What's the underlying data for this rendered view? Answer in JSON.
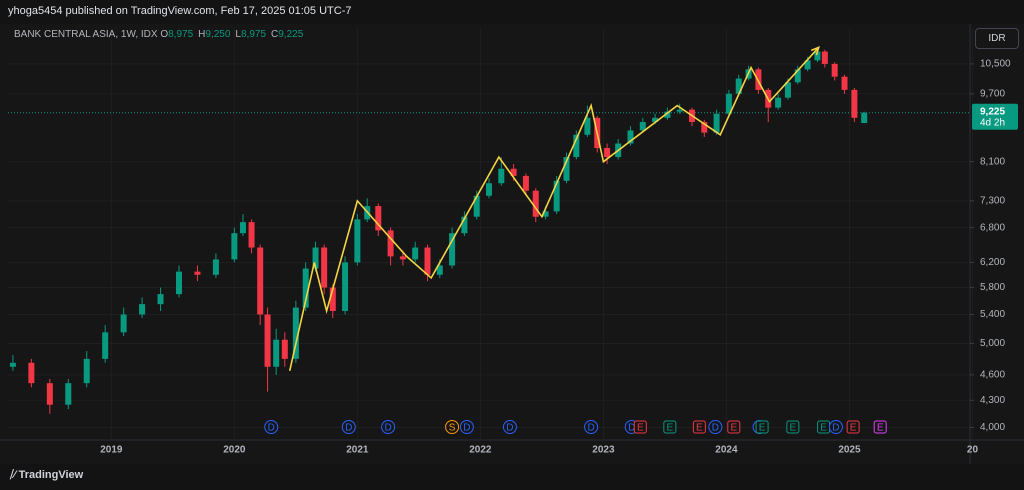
{
  "header": {
    "publisher": "yhoga5454 published on TradingView.com, Feb 17, 2025 01:05 UTC-7",
    "brand": "TradingView"
  },
  "chart_data": {
    "type": "candlestick",
    "title": "BANK CENTRAL ASIA, 1W, IDX",
    "currency": "IDR",
    "legend": [
      {
        "key": "O",
        "value": 8975,
        "value_label": "8,975"
      },
      {
        "key": "H",
        "value": 9250,
        "value_label": "9,250"
      },
      {
        "key": "L",
        "value": 8975,
        "value_label": "8,975"
      },
      {
        "key": "C",
        "value": 9225,
        "value_label": "9,225"
      }
    ],
    "last_price": {
      "value": 9225,
      "label": "9,225",
      "countdown": "4d 2h",
      "color": "#089981"
    },
    "log_scale": true,
    "grid": true,
    "up_color": "#089981",
    "down_color": "#f23645",
    "xlim": [
      2018.16,
      2025.98
    ],
    "xticks": [
      2019,
      2020,
      2021,
      2022,
      2023,
      2024,
      2025,
      {
        "value": 2026,
        "label": "20"
      }
    ],
    "ylim": [
      3870,
      11550
    ],
    "yticks": [
      {
        "value": 4000,
        "label": "4,000"
      },
      {
        "value": 4300,
        "label": "4,300"
      },
      {
        "value": 4600,
        "label": "4,600"
      },
      {
        "value": 5000,
        "label": "5,000"
      },
      {
        "value": 5400,
        "label": "5,400"
      },
      {
        "value": 5800,
        "label": "5,800"
      },
      {
        "value": 6200,
        "label": "6,200"
      },
      {
        "value": 6800,
        "label": "6,800"
      },
      {
        "value": 7300,
        "label": "7,300"
      },
      {
        "value": 8100,
        "label": "8,100"
      },
      {
        "value": 9700,
        "label": "9,700"
      },
      {
        "value": 10500,
        "label": "10,500"
      }
    ],
    "x": [
      2018.2,
      2018.35,
      2018.5,
      2018.65,
      2018.8,
      2018.95,
      2019.1,
      2019.25,
      2019.4,
      2019.55,
      2019.7,
      2019.85,
      2020.0,
      2020.07,
      2020.14,
      2020.21,
      2020.27,
      2020.34,
      2020.41,
      2020.5,
      2020.58,
      2020.66,
      2020.73,
      2020.8,
      2020.9,
      2021.0,
      2021.08,
      2021.17,
      2021.27,
      2021.37,
      2021.47,
      2021.57,
      2021.67,
      2021.77,
      2021.87,
      2021.97,
      2022.07,
      2022.17,
      2022.27,
      2022.37,
      2022.45,
      2022.53,
      2022.62,
      2022.7,
      2022.78,
      2022.87,
      2022.95,
      2023.03,
      2023.12,
      2023.22,
      2023.32,
      2023.42,
      2023.52,
      2023.62,
      2023.72,
      2023.82,
      2023.92,
      2024.02,
      2024.1,
      2024.18,
      2024.26,
      2024.34,
      2024.42,
      2024.5,
      2024.58,
      2024.66,
      2024.74,
      2024.8,
      2024.88,
      2024.96,
      2025.04,
      2025.12
    ],
    "open": [
      4700,
      4750,
      4500,
      4250,
      4500,
      4800,
      5150,
      5400,
      5550,
      5700,
      6050,
      6000,
      6250,
      6700,
      6900,
      6450,
      5400,
      4700,
      5050,
      4800,
      5500,
      6100,
      6450,
      5800,
      5450,
      6200,
      6950,
      7200,
      6750,
      6300,
      6250,
      6450,
      6000,
      6150,
      6700,
      7000,
      7400,
      7650,
      7950,
      7800,
      7500,
      7000,
      7100,
      7700,
      8200,
      8700,
      9100,
      8400,
      8200,
      8500,
      8800,
      9000,
      9100,
      9250,
      9300,
      9000,
      8750,
      9200,
      9700,
      10100,
      10350,
      9800,
      9350,
      9600,
      10000,
      10350,
      10600,
      10850,
      10500,
      10150,
      9800,
      8975
    ],
    "high": [
      4850,
      4800,
      4550,
      4550,
      4900,
      5250,
      5500,
      5650,
      5800,
      6150,
      6150,
      6350,
      6800,
      7050,
      6950,
      6500,
      5500,
      5200,
      5150,
      5600,
      6200,
      6550,
      6500,
      5850,
      6300,
      7050,
      7350,
      7250,
      6800,
      6400,
      6550,
      6500,
      6250,
      6800,
      7100,
      7500,
      7750,
      8200,
      8050,
      7850,
      7550,
      7200,
      7800,
      8300,
      8800,
      9400,
      9150,
      8500,
      8600,
      8900,
      9100,
      9200,
      9350,
      9450,
      9350,
      9050,
      9300,
      9800,
      10200,
      10450,
      10400,
      9850,
      9700,
      10100,
      10450,
      10700,
      10950,
      10900,
      10550,
      10200,
      9850,
      9250
    ],
    "low": [
      4650,
      4450,
      4150,
      4200,
      4450,
      4750,
      5100,
      5350,
      5450,
      5650,
      5900,
      5950,
      6200,
      6650,
      6350,
      5250,
      4400,
      4600,
      4700,
      4750,
      5450,
      6050,
      5700,
      5350,
      5400,
      6150,
      6900,
      6650,
      6150,
      6150,
      6200,
      5900,
      5950,
      6100,
      6650,
      6950,
      7350,
      7600,
      7700,
      7400,
      6900,
      6950,
      7050,
      7650,
      8150,
      8650,
      8300,
      8050,
      8150,
      8450,
      8750,
      8950,
      9050,
      9200,
      8900,
      8650,
      8700,
      9150,
      9650,
      10050,
      9700,
      9000,
      9300,
      9550,
      9950,
      10300,
      10550,
      10400,
      10050,
      9700,
      9000,
      8975
    ],
    "close": [
      4750,
      4500,
      4250,
      4500,
      4800,
      5150,
      5400,
      5550,
      5700,
      6050,
      6000,
      6250,
      6700,
      6900,
      6450,
      5400,
      4700,
      5050,
      4800,
      5500,
      6100,
      6450,
      5800,
      5450,
      6200,
      6950,
      7200,
      6750,
      6300,
      6250,
      6450,
      6000,
      6150,
      6700,
      7000,
      7400,
      7650,
      7950,
      7800,
      7500,
      7000,
      7100,
      7700,
      8200,
      8700,
      9100,
      8400,
      8200,
      8500,
      8800,
      9000,
      9100,
      9250,
      9300,
      9000,
      8750,
      9200,
      9700,
      10100,
      10350,
      9800,
      9350,
      9600,
      10000,
      10350,
      10600,
      10850,
      10500,
      10150,
      9800,
      9100,
      9225
    ],
    "trend": {
      "color": "#f5d442",
      "x": [
        2020.45,
        2020.65,
        2020.75,
        2021.0,
        2021.4,
        2021.6,
        2022.15,
        2022.5,
        2022.9,
        2023.0,
        2023.6,
        2023.95,
        2024.2,
        2024.35,
        2024.75
      ],
      "values": [
        4650,
        6200,
        5450,
        7300,
        6300,
        5950,
        8200,
        7000,
        9400,
        8100,
        9400,
        8700,
        10400,
        9500,
        10970
      ]
    },
    "events": [
      {
        "x": 2020.3,
        "label": "D",
        "color": "#2962ff"
      },
      {
        "x": 2020.93,
        "label": "D",
        "color": "#2962ff"
      },
      {
        "x": 2021.25,
        "label": "D",
        "color": "#2962ff"
      },
      {
        "x": 2021.77,
        "label": "S",
        "color": "#ff9800"
      },
      {
        "x": 2021.89,
        "label": "D",
        "color": "#2962ff"
      },
      {
        "x": 2022.24,
        "label": "D",
        "color": "#2962ff"
      },
      {
        "x": 2022.9,
        "label": "D",
        "color": "#2962ff"
      },
      {
        "x": 2023.23,
        "label": "D",
        "color": "#2962ff"
      },
      {
        "x": 2023.3,
        "label": "E",
        "color": "#f23645"
      },
      {
        "x": 2023.54,
        "label": "E",
        "color": "#089981"
      },
      {
        "x": 2023.78,
        "label": "E",
        "color": "#f23645"
      },
      {
        "x": 2023.91,
        "label": "D",
        "color": "#2962ff"
      },
      {
        "x": 2024.06,
        "label": "E",
        "color": "#f23645"
      },
      {
        "x": 2024.27,
        "label": "D",
        "color": "#2962ff"
      },
      {
        "x": 2024.29,
        "label": "E",
        "color": "#089981"
      },
      {
        "x": 2024.54,
        "label": "E",
        "color": "#089981"
      },
      {
        "x": 2024.79,
        "label": "E",
        "color": "#089981"
      },
      {
        "x": 2024.89,
        "label": "D",
        "color": "#2962ff"
      },
      {
        "x": 2025.03,
        "label": "E",
        "color": "#f23645"
      },
      {
        "x": 2025.25,
        "label": "E",
        "color": "#e040fb"
      }
    ]
  }
}
